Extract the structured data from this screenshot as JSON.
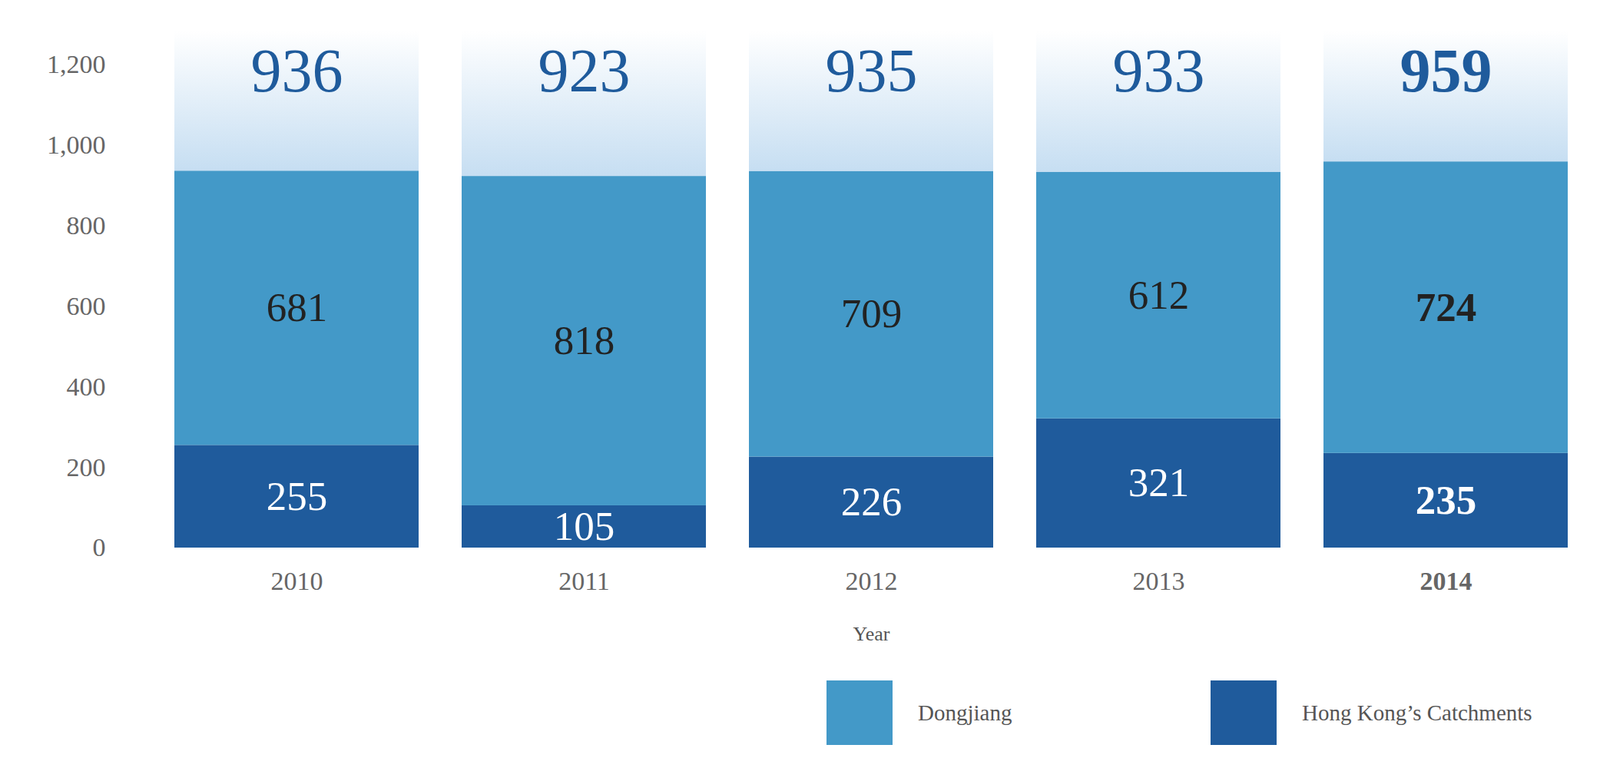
{
  "chart_data": {
    "type": "bar",
    "stacked": true,
    "data_labels": true,
    "legend": "bottom",
    "x_label": "Year",
    "categories": [
      "2010",
      "2011",
      "2012",
      "2013",
      "2014"
    ],
    "series": [
      {
        "name": "Dongjiang",
        "color": "#4399c8",
        "values": [
          681,
          818,
          709,
          612,
          724
        ]
      },
      {
        "name": "Hong Kong’s Catchments",
        "color": "#1f5b9c",
        "values": [
          255,
          105,
          226,
          321,
          235
        ]
      }
    ],
    "totals": [
      936,
      923,
      935,
      933,
      959
    ],
    "ylim": [
      0,
      1200
    ],
    "yticks": [
      0,
      200,
      400,
      600,
      800,
      {
        "value": 1000,
        "label": "1,000"
      },
      {
        "value": 1200,
        "label": "1,200"
      }
    ]
  }
}
